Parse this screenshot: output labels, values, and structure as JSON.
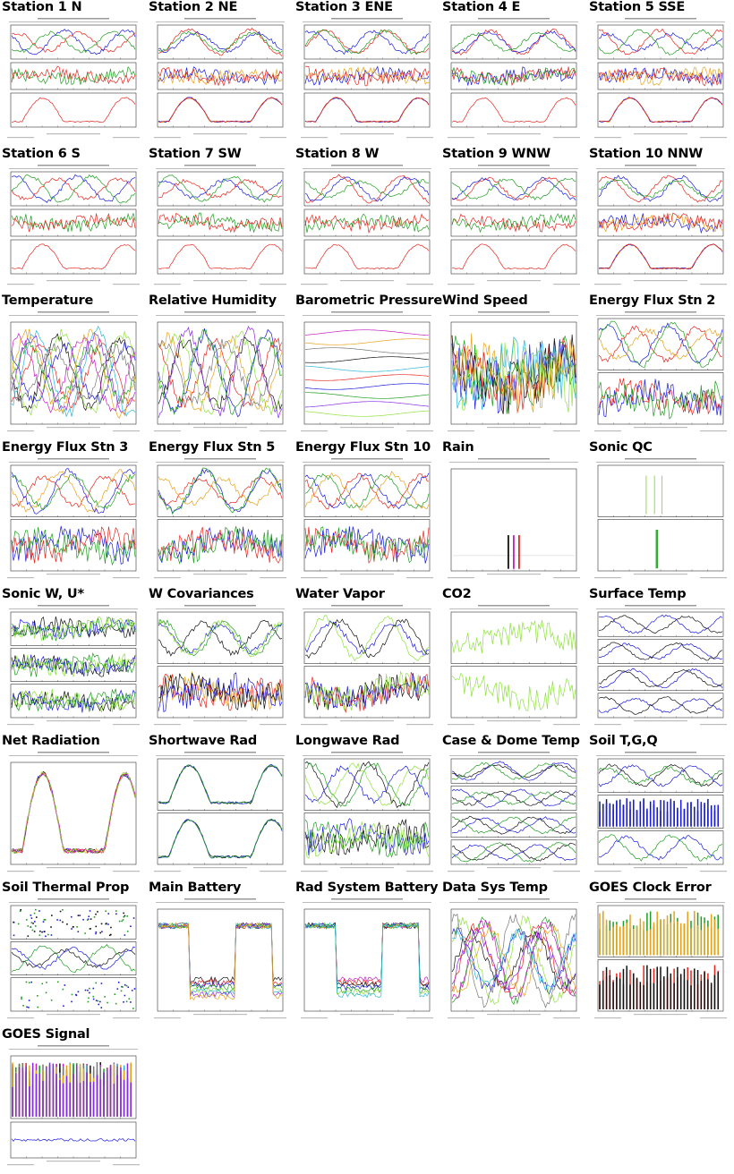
{
  "palette": {
    "red": "#e8241c",
    "green": "#1f9e1f",
    "blue": "#1a1ae0",
    "orange": "#e8a21a",
    "lime": "#8ee23a",
    "black": "#111111",
    "magenta": "#c21fc2",
    "cyan": "#29b6d6",
    "purple": "#8a2be2",
    "gray": "#777777",
    "pink": "#e06aa0",
    "navy": "#0a1f6a"
  },
  "cells": [
    {
      "title": "Station 1 N",
      "kind": "station",
      "panels": [
        [
          "red",
          "blue",
          "green"
        ],
        [
          "green",
          "red"
        ],
        [
          "red"
        ]
      ]
    },
    {
      "title": "Station 2 NE",
      "kind": "station",
      "panels": [
        [
          "red",
          "blue",
          "green"
        ],
        [
          "blue",
          "orange",
          "red"
        ],
        [
          "orange",
          "blue",
          "red"
        ]
      ]
    },
    {
      "title": "Station 3 ENE",
      "kind": "station",
      "panels": [
        [
          "red",
          "blue",
          "green"
        ],
        [
          "blue",
          "orange",
          "red"
        ],
        [
          "orange",
          "blue",
          "red"
        ]
      ]
    },
    {
      "title": "Station 4 E",
      "kind": "station",
      "panels": [
        [
          "red",
          "blue",
          "green"
        ],
        [
          "blue",
          "red",
          "green"
        ],
        [
          "red"
        ]
      ]
    },
    {
      "title": "Station 5 SSE",
      "kind": "station",
      "panels": [
        [
          "red",
          "blue",
          "green"
        ],
        [
          "blue",
          "orange",
          "red"
        ],
        [
          "orange",
          "blue",
          "red"
        ]
      ]
    },
    {
      "title": "Station 6 S",
      "kind": "station",
      "panels": [
        [
          "red",
          "blue",
          "green"
        ],
        [
          "green",
          "red"
        ],
        [
          "red"
        ]
      ]
    },
    {
      "title": "Station 7 SW",
      "kind": "station",
      "panels": [
        [
          "red",
          "blue",
          "green"
        ],
        [
          "green",
          "red"
        ],
        [
          "red"
        ]
      ]
    },
    {
      "title": "Station 8 W",
      "kind": "station",
      "panels": [
        [
          "red",
          "blue",
          "green"
        ],
        [
          "green",
          "red"
        ],
        [
          "red"
        ]
      ]
    },
    {
      "title": "Station 9 WNW",
      "kind": "station",
      "panels": [
        [
          "red",
          "blue",
          "green"
        ],
        [
          "red",
          "green"
        ],
        [
          "red"
        ]
      ]
    },
    {
      "title": "Station 10 NNW",
      "kind": "station",
      "panels": [
        [
          "red",
          "blue",
          "green"
        ],
        [
          "blue",
          "orange",
          "red"
        ],
        [
          "orange",
          "blue",
          "red"
        ]
      ]
    },
    {
      "title": "Temperature",
      "kind": "multi",
      "panels": [
        [
          "black",
          "blue",
          "red",
          "green",
          "lime",
          "cyan",
          "purple",
          "orange",
          "gray",
          "magenta"
        ]
      ]
    },
    {
      "title": "Relative Humidity",
      "kind": "multi",
      "panels": [
        [
          "black",
          "blue",
          "red",
          "green",
          "lime",
          "purple",
          "orange",
          "gray"
        ]
      ]
    },
    {
      "title": "Barometric Pressure",
      "kind": "flat",
      "panels": [
        [
          "magenta",
          "orange",
          "gray",
          "black",
          "cyan",
          "red",
          "blue",
          "green",
          "purple",
          "lime"
        ]
      ]
    },
    {
      "title": "Wind Speed",
      "kind": "noisy",
      "panels": [
        [
          "red",
          "blue",
          "green",
          "black",
          "lime",
          "cyan",
          "orange"
        ]
      ]
    },
    {
      "title": "Energy Flux Stn 2",
      "kind": "two",
      "panels": [
        [
          "red",
          "blue",
          "orange",
          "green"
        ],
        [
          "blue",
          "red",
          "green"
        ]
      ]
    },
    {
      "title": "Energy Flux Stn 3",
      "kind": "two",
      "panels": [
        [
          "red",
          "blue",
          "orange",
          "green"
        ],
        [
          "blue",
          "red",
          "green"
        ]
      ]
    },
    {
      "title": "Energy Flux Stn 5",
      "kind": "two",
      "panels": [
        [
          "red",
          "blue",
          "orange",
          "green"
        ],
        [
          "blue",
          "red",
          "green"
        ]
      ]
    },
    {
      "title": "Energy Flux Stn 10",
      "kind": "two",
      "panels": [
        [
          "red",
          "blue",
          "orange",
          "green"
        ],
        [
          "blue",
          "red",
          "green"
        ]
      ]
    },
    {
      "title": "Rain",
      "kind": "rain",
      "panels": [
        [
          "black",
          "magenta",
          "red"
        ]
      ]
    },
    {
      "title": "Sonic QC",
      "kind": "qc",
      "panels": [
        [
          "lime"
        ],
        [
          "green"
        ]
      ]
    },
    {
      "title": "Sonic W, U*",
      "kind": "three",
      "panels": [
        [
          "black",
          "blue",
          "green",
          "lime"
        ],
        [
          "black",
          "blue",
          "green",
          "lime"
        ],
        [
          "black",
          "blue",
          "green",
          "lime"
        ]
      ]
    },
    {
      "title": "W Covariances",
      "kind": "two",
      "panels": [
        [
          "black",
          "blue",
          "green",
          "lime"
        ],
        [
          "red",
          "orange",
          "black",
          "blue"
        ]
      ]
    },
    {
      "title": "Water Vapor",
      "kind": "two",
      "panels": [
        [
          "blue",
          "lime",
          "black"
        ],
        [
          "black",
          "red",
          "blue",
          "lime"
        ]
      ]
    },
    {
      "title": "CO2",
      "kind": "twonoisy",
      "panels": [
        [
          "lime"
        ],
        [
          "lime"
        ]
      ]
    },
    {
      "title": "Surface Temp",
      "kind": "four",
      "panels": [
        [
          "blue",
          "black"
        ],
        [
          "blue",
          "black"
        ],
        [
          "blue",
          "black"
        ],
        [
          "blue",
          "black"
        ]
      ]
    },
    {
      "title": "Net Radiation",
      "kind": "netrad",
      "panels": [
        [
          "black",
          "orange",
          "blue",
          "red",
          "magenta",
          "lime"
        ]
      ]
    },
    {
      "title": "Shortwave Rad",
      "kind": "twobell",
      "panels": [
        [
          "black",
          "blue",
          "green"
        ],
        [
          "black",
          "blue",
          "green"
        ]
      ]
    },
    {
      "title": "Longwave Rad",
      "kind": "two",
      "panels": [
        [
          "black",
          "blue",
          "green",
          "lime"
        ],
        [
          "black",
          "blue",
          "green",
          "lime"
        ]
      ]
    },
    {
      "title": "Case & Dome Temp",
      "kind": "four",
      "panels": [
        [
          "blue",
          "black",
          "green"
        ],
        [
          "blue",
          "black",
          "green"
        ],
        [
          "blue",
          "black",
          "green"
        ],
        [
          "blue",
          "black",
          "green"
        ]
      ]
    },
    {
      "title": "Soil T,G,Q",
      "kind": "soil",
      "panels": [
        [
          "black",
          "green",
          "blue"
        ],
        [
          "navy",
          "blue"
        ],
        [
          "green",
          "blue"
        ]
      ]
    },
    {
      "title": "Soil Thermal Prop",
      "kind": "stprop",
      "panels": [
        [
          "blue",
          "green",
          "black"
        ],
        [
          "black",
          "blue",
          "green"
        ],
        [
          "blue",
          "green"
        ]
      ]
    },
    {
      "title": "Main Battery",
      "kind": "battery",
      "panels": [
        [
          "black",
          "red",
          "blue",
          "green",
          "lime",
          "cyan",
          "purple",
          "orange"
        ]
      ]
    },
    {
      "title": "Rad System Battery",
      "kind": "battery",
      "panels": [
        [
          "magenta",
          "red",
          "black",
          "blue",
          "green",
          "lime",
          "cyan"
        ]
      ]
    },
    {
      "title": "Data Sys Temp",
      "kind": "multi",
      "panels": [
        [
          "black",
          "blue",
          "red",
          "green",
          "lime",
          "cyan",
          "purple",
          "orange",
          "gray",
          "magenta"
        ]
      ]
    },
    {
      "title": "GOES Clock Error",
      "kind": "goesclock",
      "panels": [
        [
          "green",
          "orange"
        ],
        [
          "red",
          "black"
        ]
      ]
    },
    {
      "title": "GOES Signal",
      "kind": "goessignal",
      "panels": [
        [
          "red",
          "black",
          "magenta",
          "cyan",
          "green",
          "gray",
          "orange",
          "purple"
        ],
        [
          "blue"
        ]
      ]
    }
  ]
}
